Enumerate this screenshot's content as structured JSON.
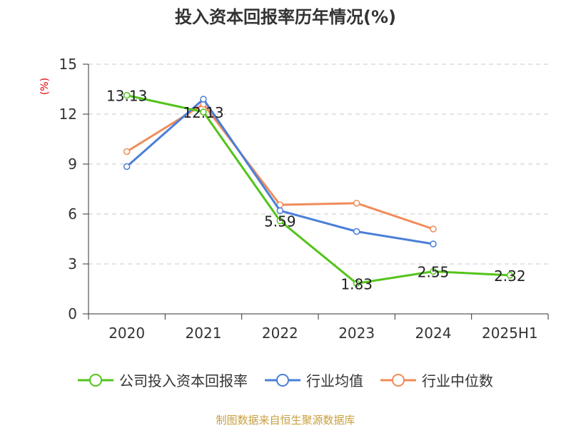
{
  "title": "投入资本回报率历年情况(%)",
  "unit_label": "(%)",
  "source": "制图数据来自恒生聚源数据库",
  "chart_data": {
    "type": "line",
    "title": "投入资本回报率历年情况(%)",
    "xlabel": "",
    "ylabel": "(%)",
    "categories": [
      "2020",
      "2021",
      "2022",
      "2023",
      "2024",
      "2025H1"
    ],
    "ylim": [
      0,
      15
    ],
    "yticks": [
      0,
      3,
      6,
      9,
      12,
      15
    ],
    "grid": true,
    "legend_position": "bottom",
    "series": [
      {
        "name": "公司投入资本回报率",
        "color": "#52c41a",
        "values": [
          13.13,
          12.13,
          5.59,
          1.83,
          2.55,
          2.32
        ],
        "labels": [
          "13.13",
          "12.13",
          "5.59",
          "1.83",
          "2.55",
          "2.32"
        ]
      },
      {
        "name": "行业均值",
        "color": "#4a7fd8",
        "values": [
          8.85,
          12.9,
          6.2,
          4.95,
          4.2,
          null
        ]
      },
      {
        "name": "行业中位数",
        "color": "#f08c5a",
        "values": [
          9.75,
          12.6,
          6.55,
          6.65,
          5.1,
          null
        ]
      }
    ]
  }
}
